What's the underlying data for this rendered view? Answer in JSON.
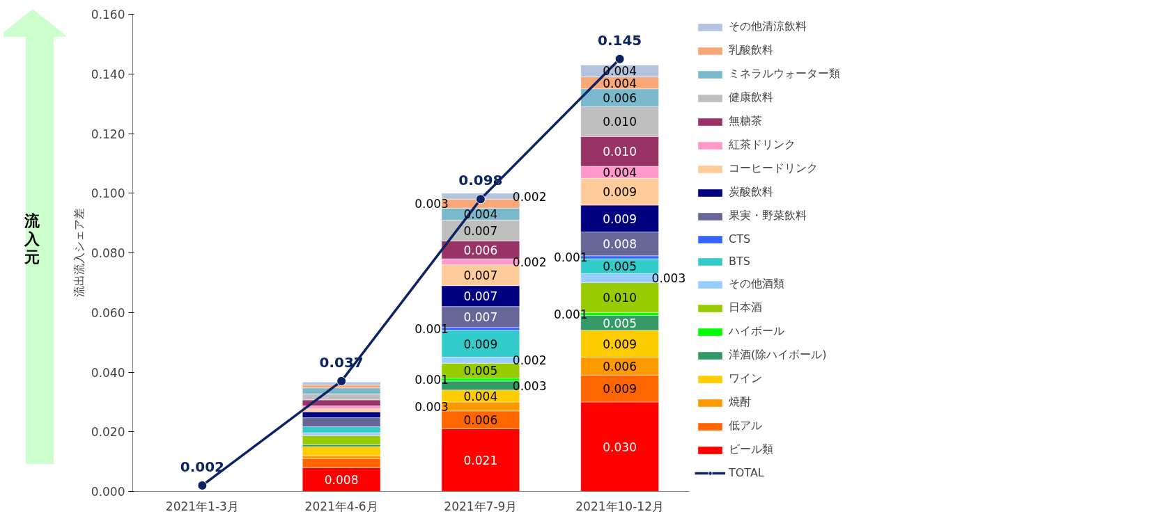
{
  "chart_data": {
    "type": "bar",
    "stacked": true,
    "ylabel": "流出流入シェア差",
    "annotations": [
      "流入元"
    ],
    "categories": [
      "2021年1-3月",
      "2021年4-6月",
      "2021年7-9月",
      "2021年10-12月"
    ],
    "ylim": [
      0,
      0.16
    ],
    "yticks": [
      {
        "value": 0,
        "label": "0.000"
      },
      {
        "value": 0.02,
        "label": "0.020"
      },
      {
        "value": 0.04,
        "label": "0.040"
      },
      {
        "value": 0.06,
        "label": "0.060"
      },
      {
        "value": 0.08,
        "label": "0.080"
      },
      {
        "value": 0.1,
        "label": "0.100"
      },
      {
        "value": 0.12,
        "label": "0.120"
      },
      {
        "value": 0.14,
        "label": "0.140"
      },
      {
        "value": 0.16,
        "label": "0.160"
      }
    ],
    "legend": "right",
    "series": [
      {
        "name": "ビール類",
        "color": "#ff0000",
        "values": [
          null,
          0.008,
          0.021,
          0.03
        ],
        "value_labels": [
          null,
          "0.008",
          "0.021",
          "0.030"
        ]
      },
      {
        "name": "低アル",
        "color": "#ff6600",
        "values": [
          null,
          0.003,
          0.006,
          0.009
        ],
        "value_labels": [
          null,
          null,
          "0.006",
          "0.009"
        ]
      },
      {
        "name": "焼酎",
        "color": "#ff9900",
        "values": [
          null,
          0.001,
          0.003,
          0.006
        ],
        "value_labels": [
          null,
          null,
          "0.003",
          "0.006"
        ]
      },
      {
        "name": "ワイン",
        "color": "#ffcc00",
        "values": [
          null,
          0.003,
          0.004,
          0.009
        ],
        "value_labels": [
          null,
          null,
          "0.004",
          "0.009"
        ]
      },
      {
        "name": "洋酒(除ハイボール)",
        "color": "#339966",
        "values": [
          null,
          0.0007,
          0.003,
          0.005
        ],
        "value_labels": [
          null,
          null,
          "0.003",
          "0.005"
        ]
      },
      {
        "name": "ハイボール",
        "color": "#00ff00",
        "values": [
          null,
          null,
          0.001,
          0.001
        ],
        "value_labels": [
          null,
          null,
          "0.001",
          "0.001"
        ]
      },
      {
        "name": "日本酒",
        "color": "#99cc00",
        "values": [
          null,
          0.003,
          0.005,
          0.01
        ],
        "value_labels": [
          null,
          null,
          "0.005",
          "0.010"
        ]
      },
      {
        "name": "その他酒類",
        "color": "#99ccff",
        "values": [
          null,
          0.001,
          0.002,
          0.003
        ],
        "value_labels": [
          null,
          null,
          "0.002",
          "0.003"
        ]
      },
      {
        "name": "BTS",
        "color": "#33cccc",
        "values": [
          null,
          0.002,
          0.009,
          0.005
        ],
        "value_labels": [
          null,
          null,
          "0.009",
          "0.005"
        ]
      },
      {
        "name": "CTS",
        "color": "#3366ff",
        "values": [
          null,
          null,
          0.001,
          0.001
        ],
        "value_labels": [
          null,
          null,
          "0.001",
          "0.001"
        ]
      },
      {
        "name": "果実・野菜飲料",
        "color": "#666699",
        "values": [
          null,
          0.003,
          0.007,
          0.008
        ],
        "value_labels": [
          null,
          null,
          "0.007",
          "0.008"
        ]
      },
      {
        "name": "炭酸飲料",
        "color": "#000080",
        "values": [
          null,
          0.002,
          0.007,
          0.009
        ],
        "value_labels": [
          null,
          null,
          "0.007",
          "0.009"
        ]
      },
      {
        "name": "コーヒードリンク",
        "color": "#ffcc99",
        "values": [
          null,
          0.001,
          0.007,
          0.009
        ],
        "value_labels": [
          null,
          null,
          "0.007",
          "0.009"
        ]
      },
      {
        "name": "紅茶ドリンク",
        "color": "#ff99cc",
        "values": [
          null,
          0.001,
          0.002,
          0.004
        ],
        "value_labels": [
          null,
          null,
          "0.002",
          "0.004"
        ]
      },
      {
        "name": "無糖茶",
        "color": "#993366",
        "values": [
          null,
          0.002,
          0.006,
          0.01
        ],
        "value_labels": [
          null,
          null,
          "0.006",
          "0.010"
        ]
      },
      {
        "name": "健康飲料",
        "color": "#bfbfbf",
        "values": [
          null,
          0.002,
          0.007,
          0.01
        ],
        "value_labels": [
          null,
          null,
          "0.007",
          "0.010"
        ]
      },
      {
        "name": "ミネラルウォーター類",
        "color": "#7ab8cc",
        "values": [
          null,
          0.002,
          0.004,
          0.006
        ],
        "value_labels": [
          null,
          null,
          "0.004",
          "0.006"
        ]
      },
      {
        "name": "乳酸飲料",
        "color": "#f8a878",
        "values": [
          null,
          0.001,
          0.003,
          0.004
        ],
        "value_labels": [
          null,
          null,
          "0.003",
          "0.004"
        ]
      },
      {
        "name": "その他清涼飲料",
        "color": "#b4c3de",
        "values": [
          null,
          0.001,
          0.002,
          0.004
        ],
        "value_labels": [
          null,
          null,
          "0.002",
          "0.004"
        ]
      },
      {
        "name": "TOTAL",
        "type": "line",
        "color": "#0d2463",
        "marker": "circle",
        "values": [
          0.002,
          0.037,
          0.098,
          0.145
        ],
        "value_labels": [
          "0.002",
          "0.037",
          "0.098",
          "0.145"
        ]
      }
    ]
  }
}
